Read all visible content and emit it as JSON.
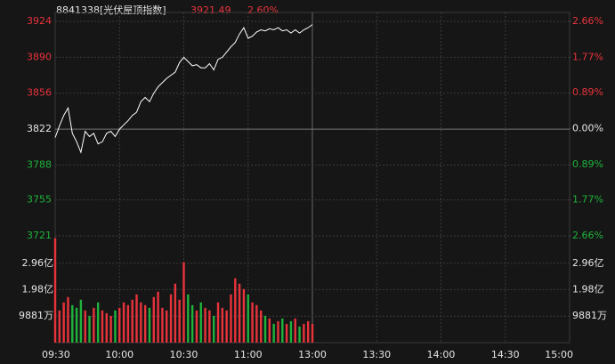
{
  "chart_data": {
    "type": "line",
    "title": "8841338[光伏屋顶指数]",
    "price_label": "3921.49",
    "change_label": "2.60%",
    "color": "#ffffff",
    "up_color": "#e8333b",
    "down_color": "#1fb33c",
    "flat_color": "#e6e6e6",
    "grid": true,
    "x": [
      0,
      2,
      4,
      6,
      8,
      10,
      12,
      14,
      16,
      18,
      20,
      22,
      24,
      26,
      28,
      30,
      32,
      34,
      36,
      38,
      40,
      42,
      44,
      46,
      48,
      50,
      52,
      54,
      56,
      58,
      60,
      62,
      64,
      66,
      68,
      70,
      72,
      74,
      76,
      78,
      80,
      82,
      84,
      86,
      88,
      90,
      92,
      94,
      96,
      98,
      100,
      102,
      104,
      106,
      108,
      110,
      112,
      114,
      116,
      118,
      120
    ],
    "values": [
      3814,
      3825,
      3835,
      3842,
      3818,
      3810,
      3800,
      3820,
      3815,
      3818,
      3808,
      3810,
      3818,
      3820,
      3815,
      3822,
      3826,
      3830,
      3835,
      3838,
      3848,
      3852,
      3848,
      3856,
      3862,
      3866,
      3870,
      3873,
      3876,
      3885,
      3890,
      3886,
      3882,
      3883,
      3880,
      3880,
      3884,
      3878,
      3888,
      3890,
      3895,
      3900,
      3904,
      3912,
      3918,
      3908,
      3910,
      3914,
      3916,
      3915,
      3917,
      3916,
      3918,
      3915,
      3916,
      3913,
      3916,
      3913,
      3916,
      3918,
      3921
    ],
    "xlim": [
      0,
      240
    ],
    "xticks": [
      {
        "value": 0,
        "label": "09:30"
      },
      {
        "value": 30,
        "label": "10:00"
      },
      {
        "value": 60,
        "label": "10:30"
      },
      {
        "value": 90,
        "label": "11:00"
      },
      {
        "value": 120,
        "label": "13:00"
      },
      {
        "value": 150,
        "label": "13:30"
      },
      {
        "value": 180,
        "label": "14:00"
      },
      {
        "value": 210,
        "label": "14:30"
      },
      {
        "value": 240,
        "label": "15:00"
      }
    ],
    "ylim": [
      3721,
      3924
    ],
    "yticks": [
      3924,
      3890,
      3856,
      3822,
      3788,
      3755,
      3721
    ],
    "y2lim": [
      -2.66,
      2.66
    ],
    "y2ticks": [
      {
        "value": 2.66,
        "label": "2.66%"
      },
      {
        "value": 1.77,
        "label": "1.77%"
      },
      {
        "value": 0.89,
        "label": "0.89%"
      },
      {
        "value": 0,
        "label": "0.00%"
      },
      {
        "value": -0.89,
        "label": "0.89%"
      },
      {
        "value": -1.77,
        "label": "1.77%"
      },
      {
        "value": -2.66,
        "label": "2.66%"
      }
    ],
    "volume": {
      "values": [
        39000,
        12000,
        15000,
        17000,
        14000,
        13000,
        16000,
        12000,
        10000,
        13000,
        15000,
        12000,
        11000,
        10000,
        12000,
        13000,
        15000,
        14000,
        16000,
        18000,
        15000,
        14000,
        13000,
        17000,
        19000,
        13000,
        12000,
        18000,
        22000,
        16000,
        30000,
        18000,
        14000,
        12000,
        15000,
        13000,
        12000,
        10000,
        15000,
        13000,
        12000,
        18000,
        24000,
        22000,
        20000,
        18000,
        15000,
        14000,
        12000,
        10000,
        9000,
        7000,
        8000,
        9000,
        7000,
        8000,
        9000,
        6000,
        7000,
        8000,
        7000
      ],
      "ylim": [
        0,
        39500
      ],
      "yticks": [
        {
          "value": 29600,
          "label": "2.96亿"
        },
        {
          "value": 19800,
          "label": "1.98亿"
        },
        {
          "value": 9881,
          "label": "9881万"
        }
      ]
    }
  }
}
